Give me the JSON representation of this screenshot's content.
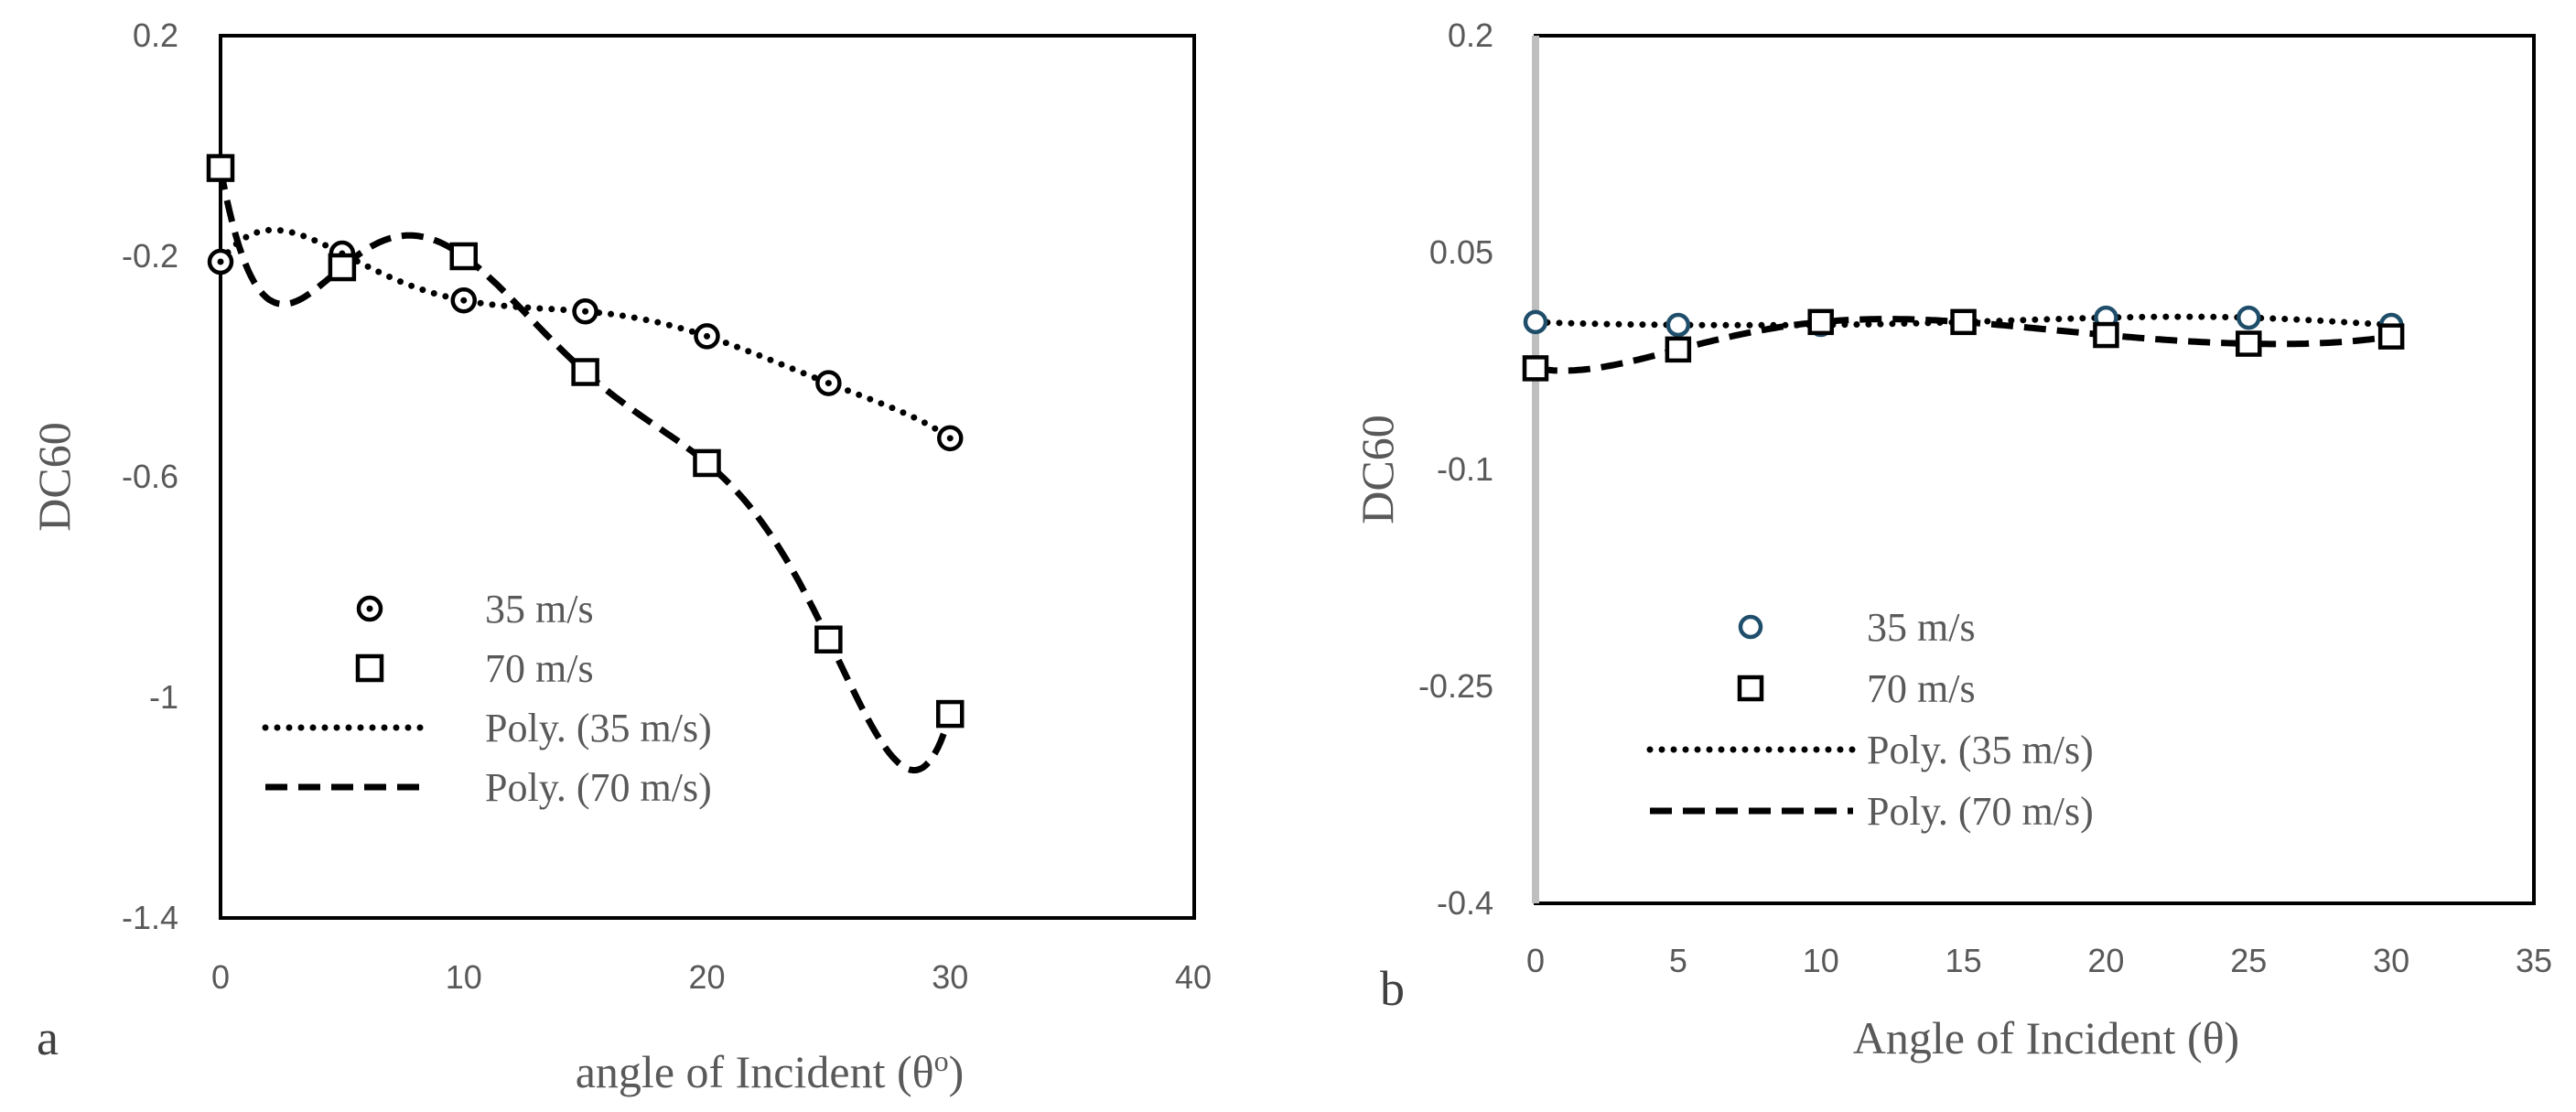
{
  "chart_data": [
    {
      "panel_label": "a",
      "type": "scatter",
      "xlabel": "angle of Incident (θ",
      "xlabel_sup": "o",
      "xlabel_end": ")",
      "ylabel": "DC60",
      "xlim": [
        0,
        40
      ],
      "ylim": [
        -1.4,
        0.2
      ],
      "xticks": [
        0,
        10,
        20,
        30,
        40
      ],
      "xtick_labels": [
        "0",
        "10",
        "20",
        "30",
        "40"
      ],
      "yticks": [
        0.2,
        -0.2,
        -0.6,
        -1.0,
        -1.4
      ],
      "ytick_labels": [
        "0.2",
        "-0.2",
        "-0.6",
        "-1",
        "-1.4"
      ],
      "legend": {
        "position": "lower-left",
        "items": [
          "35 m/s",
          "70 m/s",
          "Poly. (35 m/s)",
          "Poly. (70 m/s)"
        ]
      },
      "series": [
        {
          "name": "35 m/s",
          "marker": "circle-dot",
          "color": "#000000",
          "x": [
            0,
            5,
            10,
            15,
            20,
            25,
            30
          ],
          "y": [
            -0.21,
            -0.195,
            -0.28,
            -0.3,
            -0.345,
            -0.43,
            -0.53
          ]
        },
        {
          "name": "70 m/s",
          "marker": "square",
          "color": "#000000",
          "x": [
            0,
            5,
            10,
            15,
            20,
            25,
            30
          ],
          "y": [
            -0.04,
            -0.22,
            -0.2,
            -0.41,
            -0.575,
            -0.895,
            -1.03
          ]
        }
      ],
      "trendlines": [
        {
          "name": "Poly. (35 m/s)",
          "style": "dotted",
          "of": "35 m/s",
          "degree": 6
        },
        {
          "name": "Poly. (70 m/s)",
          "style": "dashed",
          "of": "70 m/s",
          "degree": 6
        }
      ]
    },
    {
      "panel_label": "b",
      "type": "scatter",
      "xlabel": "Angle of Incident (θ)",
      "ylabel": "DC60",
      "xlim": [
        0,
        35
      ],
      "ylim": [
        -0.4,
        0.2
      ],
      "xticks": [
        0,
        5,
        10,
        15,
        20,
        25,
        30,
        35
      ],
      "xtick_labels": [
        "0",
        "5",
        "10",
        "15",
        "20",
        "25",
        "30",
        "35"
      ],
      "yticks": [
        0.2,
        0.05,
        -0.1,
        -0.25,
        -0.4
      ],
      "ytick_labels": [
        "0.2",
        "0.05",
        "-0.1",
        "-0.25",
        "-0.4"
      ],
      "legend": {
        "position": "lower-left",
        "items": [
          "35 m/s",
          "70 m/s",
          "Poly. (35 m/s)",
          "Poly. (70 m/s)"
        ]
      },
      "series": [
        {
          "name": "35 m/s",
          "marker": "circle",
          "color": "#1f4e6b",
          "x": [
            0,
            5,
            10,
            15,
            20,
            25,
            30
          ],
          "y": [
            0.002,
            0.0,
            0.0,
            0.002,
            0.005,
            0.005,
            0.0
          ]
        },
        {
          "name": "70 m/s",
          "marker": "square",
          "color": "#000000",
          "x": [
            0,
            5,
            10,
            15,
            20,
            25,
            30
          ],
          "y": [
            -0.03,
            -0.017,
            0.002,
            0.002,
            -0.007,
            -0.013,
            -0.008
          ]
        }
      ],
      "trendlines": [
        {
          "name": "Poly. (35 m/s)",
          "style": "dotted",
          "of": "35 m/s",
          "degree": 6
        },
        {
          "name": "Poly. (70 m/s)",
          "style": "dashed",
          "of": "70 m/s",
          "degree": 6
        }
      ]
    }
  ]
}
